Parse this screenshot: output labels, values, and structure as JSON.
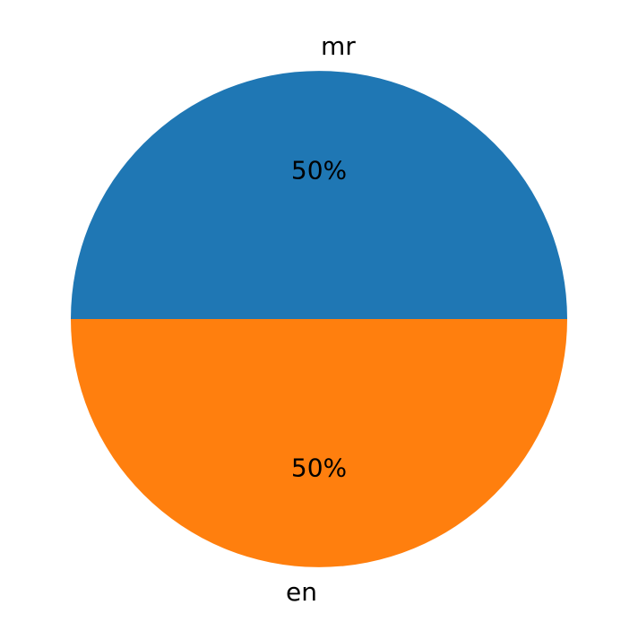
{
  "chart_data": {
    "type": "pie",
    "categories": [
      "mr",
      "en"
    ],
    "values": [
      50,
      50
    ],
    "value_labels": [
      "50%",
      "50%"
    ],
    "colors": [
      "#1f77b4",
      "#ff7f0e"
    ],
    "start_angle_deg": 0,
    "direction": "counterclockwise"
  }
}
